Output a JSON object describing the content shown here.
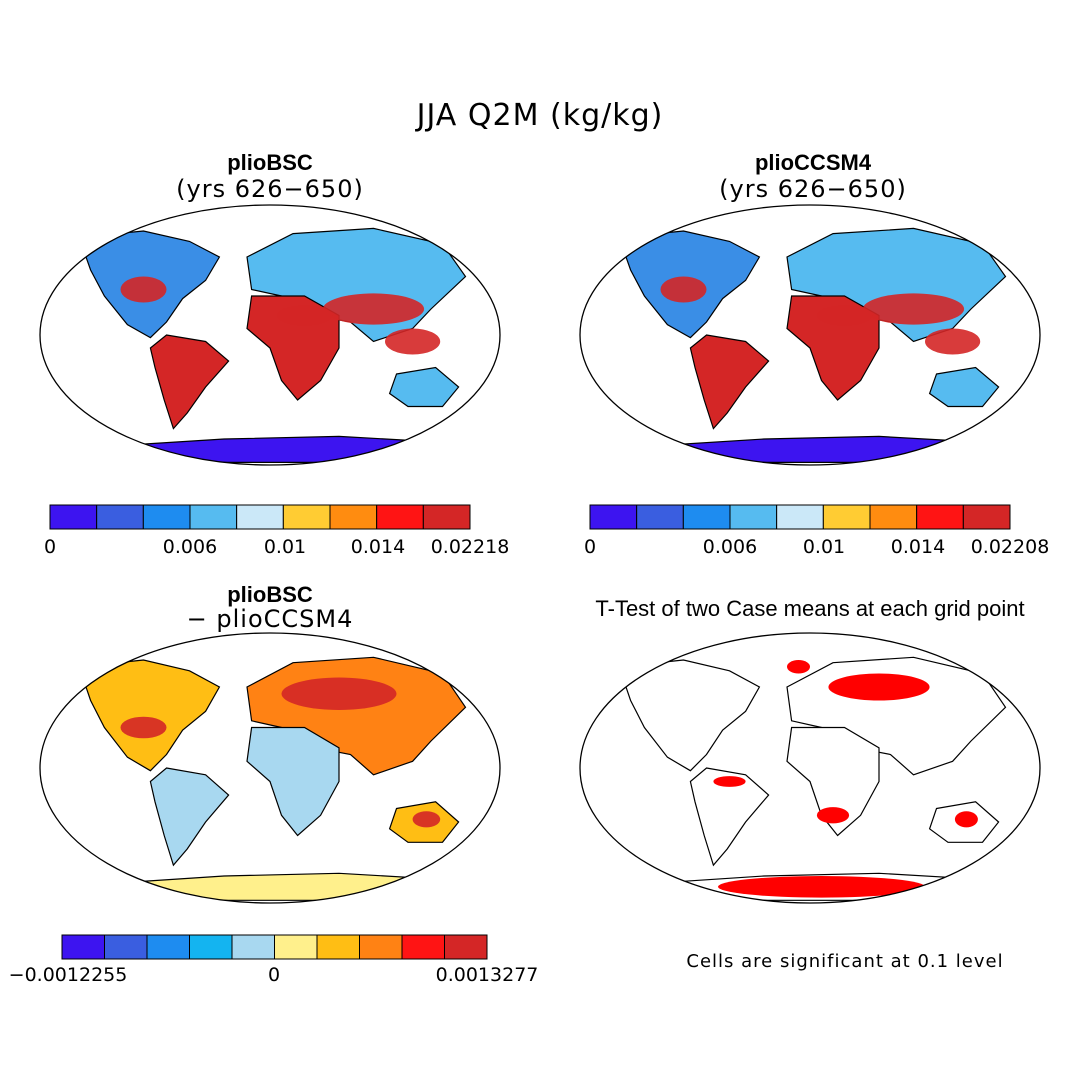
{
  "figure": {
    "title": "JJA Q2M (kg/kg)"
  },
  "panels": [
    {
      "id": "panel-1",
      "title": "plioBSC",
      "subtitle": "(yrs 626−650)",
      "colorbar": {
        "colors": [
          "#3d14f0",
          "#3a5ee0",
          "#1e8cf0",
          "#56bbf0",
          "#cbe8f8",
          "#ffcc33",
          "#ff8c10",
          "#ff1414",
          "#d42626"
        ],
        "tick_labels": [
          "0",
          "0.006",
          "0.01",
          "0.014",
          "0.02218"
        ]
      }
    },
    {
      "id": "panel-2",
      "title": "plioCCSM4",
      "subtitle": "(yrs 626−650)",
      "colorbar": {
        "colors": [
          "#3d14f0",
          "#3a5ee0",
          "#1e8cf0",
          "#56bbf0",
          "#cbe8f8",
          "#ffcc33",
          "#ff8c10",
          "#ff1414",
          "#d42626"
        ],
        "tick_labels": [
          "0",
          "0.006",
          "0.01",
          "0.014",
          "0.02208"
        ]
      }
    },
    {
      "id": "panel-3",
      "title": "plioBSC",
      "subtitle": "− plioCCSM4",
      "colorbar": {
        "colors": [
          "#3d14f0",
          "#3a5ee0",
          "#1e8cf0",
          "#14b4f0",
          "#a8d8f0",
          "#fff08c",
          "#ffbe14",
          "#ff8214",
          "#ff1414",
          "#d42626"
        ],
        "tick_labels": [
          "−0.0012255",
          "0",
          "0.0013277"
        ]
      }
    },
    {
      "id": "panel-4",
      "title": "T-Test of two Case means at each grid point",
      "note": "Cells are significant at 0.1 level",
      "significant_color": "#ff0000"
    }
  ]
}
